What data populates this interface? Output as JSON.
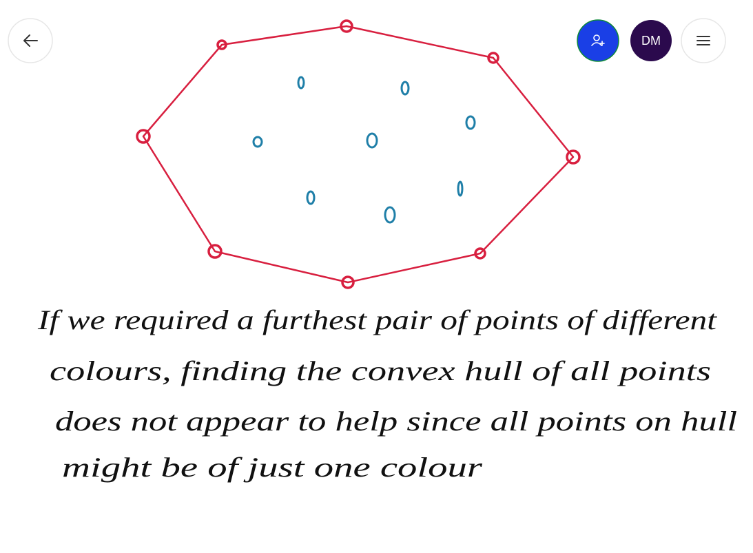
{
  "avatar": {
    "initials": "DM"
  },
  "note": {
    "lines": [
      "If we required a furthest pair of points of different",
      "colours, finding the convex hull of all points",
      "does not appear to help since all points on hull",
      "might be of just one colour"
    ]
  }
}
